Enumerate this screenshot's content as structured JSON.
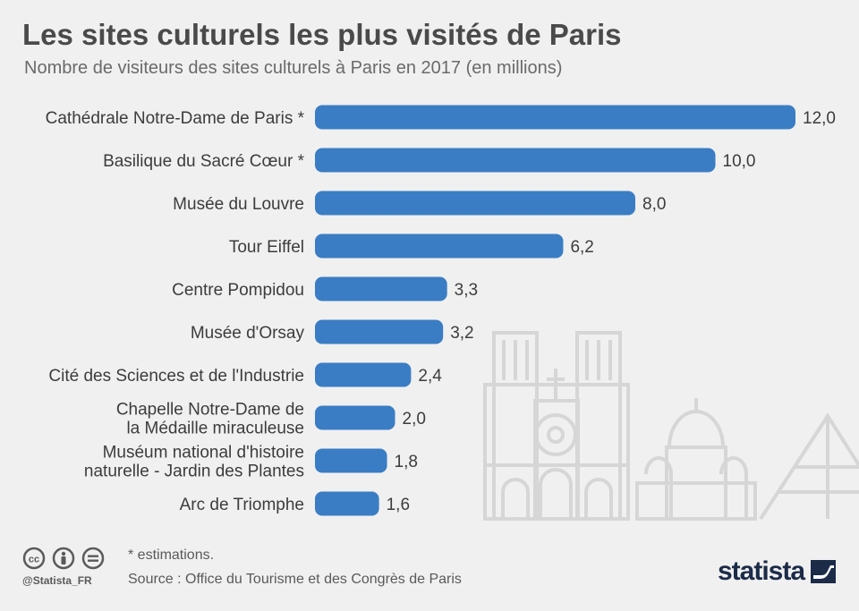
{
  "header": {
    "title": "Les sites culturels les plus visités de Paris",
    "subtitle": "Nombre de visiteurs des sites culturels à Paris en 2017 (en millions)"
  },
  "chart_data": {
    "type": "bar",
    "orientation": "horizontal",
    "categories": [
      [
        "Cathédrale Notre-Dame de Paris *"
      ],
      [
        "Basilique du Sacré Cœur *"
      ],
      [
        "Musée du Louvre"
      ],
      [
        "Tour Eiffel"
      ],
      [
        "Centre Pompidou"
      ],
      [
        "Musée d'Orsay"
      ],
      [
        "Cité des Sciences et de l'Industrie"
      ],
      [
        "Chapelle Notre-Dame de",
        "la Médaille miraculeuse"
      ],
      [
        "Muséum national d'histoire",
        "naturelle - Jardin des Plantes"
      ],
      [
        "Arc de Triomphe"
      ]
    ],
    "values": [
      12.0,
      10.0,
      8.0,
      6.2,
      3.3,
      3.2,
      2.4,
      2.0,
      1.8,
      1.6
    ],
    "value_labels": [
      "12,0",
      "10,0",
      "8,0",
      "6,2",
      "3,3",
      "3,2",
      "2,4",
      "2,0",
      "1,8",
      "1,6"
    ],
    "xlim": [
      0,
      12
    ],
    "grid": false,
    "bar_color": "#3a7dc4"
  },
  "footer": {
    "footnote": "* estimations.",
    "source": "Source : Office du Tourisme et des Congrès de Paris",
    "handle": "@Statista_FR",
    "brand": "statista",
    "icons": [
      "cc-icon",
      "by-icon",
      "nd-icon"
    ]
  }
}
